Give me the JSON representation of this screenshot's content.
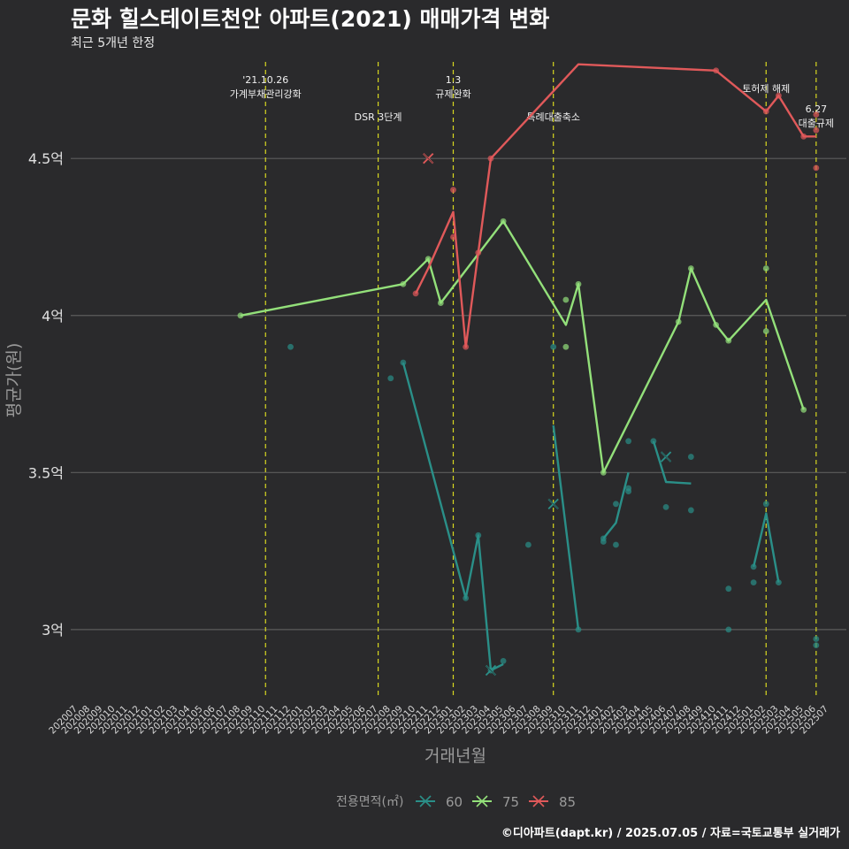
{
  "title": "문화 힐스테이트천안 아파트(2021) 매매가격 변화",
  "subtitle": "최근 5개년 한정",
  "caption": "©디아파트(dapt.kr) / 2025.07.05 / 자료=국토교통부 실거래가",
  "colors": {
    "background": "#2a2a2c",
    "grid": "#5c5c5c",
    "event_line": "#d8d820",
    "series_60": "#2a8f88",
    "series_75": "#93e07a",
    "series_85": "#e0595a"
  },
  "chart_data": {
    "type": "line",
    "xlabel": "거래년월",
    "ylabel": "평균가(원)",
    "ylim": [
      2.78,
      4.83
    ],
    "y_ticks": [
      {
        "value": 3.0,
        "label": "3억"
      },
      {
        "value": 3.5,
        "label": "3.5억"
      },
      {
        "value": 4.0,
        "label": "4억"
      },
      {
        "value": 4.5,
        "label": "4.5억"
      }
    ],
    "x_categories": [
      "202007",
      "202008",
      "202009",
      "202010",
      "202011",
      "202012",
      "202101",
      "202102",
      "202103",
      "202104",
      "202105",
      "202106",
      "202107",
      "202108",
      "202109",
      "202110",
      "202111",
      "202112",
      "202201",
      "202202",
      "202203",
      "202204",
      "202205",
      "202206",
      "202207",
      "202208",
      "202209",
      "202210",
      "202211",
      "202212",
      "202301",
      "202302",
      "202303",
      "202304",
      "202305",
      "202306",
      "202307",
      "202308",
      "202309",
      "202310",
      "202311",
      "202312",
      "202401",
      "202402",
      "202403",
      "202404",
      "202405",
      "202406",
      "202407",
      "202408",
      "202409",
      "202410",
      "202411",
      "202412",
      "202501",
      "202502",
      "202503",
      "202504",
      "202505",
      "202506",
      "202507"
    ],
    "legend_title": "전용면적(㎡)",
    "legend_position": "bottom",
    "events": [
      {
        "x": "202110",
        "lines": [
          "'21.10.26",
          "가계부채관리강화"
        ]
      },
      {
        "x": "202207",
        "lines": [
          "DSR 3단계"
        ]
      },
      {
        "x": "202301",
        "lines": [
          "1.3",
          "규제완화"
        ]
      },
      {
        "x": "202309",
        "lines": [
          "특례대출축소"
        ]
      },
      {
        "x": "202502",
        "lines": [
          "토허제 해제"
        ]
      },
      {
        "x": "202506",
        "lines": [
          "6.27",
          "대출규제"
        ]
      }
    ],
    "series": [
      {
        "name": "60",
        "color_key": "series_60",
        "line": [
          {
            "x": "202209",
            "y": 3.85
          },
          {
            "x": "202302",
            "y": 3.1
          },
          {
            "x": "202303",
            "y": 3.3
          },
          {
            "x": "202304",
            "y": 2.87
          },
          {
            "x": "202305",
            "y": 2.89
          },
          null,
          {
            "x": "202309",
            "y": 3.65
          },
          {
            "x": "202311",
            "y": 3.0
          },
          null,
          {
            "x": "202401",
            "y": 3.29
          },
          {
            "x": "202402",
            "y": 3.34
          },
          {
            "x": "202403",
            "y": 3.5
          },
          null,
          {
            "x": "202405",
            "y": 3.6
          },
          {
            "x": "202406",
            "y": 3.47
          },
          {
            "x": "202408",
            "y": 3.465
          },
          null,
          {
            "x": "202501",
            "y": 3.2
          },
          {
            "x": "202502",
            "y": 3.37
          },
          {
            "x": "202503",
            "y": 3.15
          }
        ],
        "points": [
          {
            "x": "202208",
            "y": 3.8
          },
          {
            "x": "202112",
            "y": 3.9
          },
          {
            "x": "202209",
            "y": 3.85
          },
          {
            "x": "202302",
            "y": 3.1
          },
          {
            "x": "202303",
            "y": 3.3
          },
          {
            "x": "202304",
            "y": 2.87
          },
          {
            "x": "202305",
            "y": 2.9
          },
          {
            "x": "202307",
            "y": 3.27
          },
          {
            "x": "202309",
            "y": 3.9
          },
          {
            "x": "202311",
            "y": 3.0
          },
          {
            "x": "202401",
            "y": 3.28
          },
          {
            "x": "202401",
            "y": 3.29
          },
          {
            "x": "202402",
            "y": 3.27
          },
          {
            "x": "202402",
            "y": 3.4
          },
          {
            "x": "202403",
            "y": 3.44
          },
          {
            "x": "202403",
            "y": 3.45
          },
          {
            "x": "202403",
            "y": 3.6
          },
          {
            "x": "202405",
            "y": 3.6
          },
          {
            "x": "202406",
            "y": 3.39
          },
          {
            "x": "202408",
            "y": 3.38
          },
          {
            "x": "202408",
            "y": 3.55
          },
          {
            "x": "202411",
            "y": 3.13
          },
          {
            "x": "202411",
            "y": 3.0
          },
          {
            "x": "202501",
            "y": 3.15
          },
          {
            "x": "202501",
            "y": 3.2
          },
          {
            "x": "202502",
            "y": 3.4
          },
          {
            "x": "202503",
            "y": 3.15
          },
          {
            "x": "202506",
            "y": 2.95
          },
          {
            "x": "202506",
            "y": 2.97
          }
        ],
        "x_marks": [
          {
            "x": "202304",
            "y": 2.87
          },
          {
            "x": "202309",
            "y": 3.4
          },
          {
            "x": "202406",
            "y": 3.55
          }
        ]
      },
      {
        "name": "75",
        "color_key": "series_75",
        "line": [
          {
            "x": "202108",
            "y": 4.0
          },
          {
            "x": "202209",
            "y": 4.1
          },
          {
            "x": "202211",
            "y": 4.18
          },
          {
            "x": "202212",
            "y": 4.04
          },
          {
            "x": "202305",
            "y": 4.3
          },
          {
            "x": "202310",
            "y": 3.97
          },
          {
            "x": "202311",
            "y": 4.1
          },
          {
            "x": "202401",
            "y": 3.5
          },
          {
            "x": "202407",
            "y": 3.98
          },
          {
            "x": "202408",
            "y": 4.15
          },
          {
            "x": "202410",
            "y": 3.97
          },
          {
            "x": "202411",
            "y": 3.92
          },
          {
            "x": "202502",
            "y": 4.05
          },
          {
            "x": "202505",
            "y": 3.7
          }
        ],
        "points": [
          {
            "x": "202108",
            "y": 4.0
          },
          {
            "x": "202209",
            "y": 4.1
          },
          {
            "x": "202211",
            "y": 4.18
          },
          {
            "x": "202212",
            "y": 4.04
          },
          {
            "x": "202305",
            "y": 4.3
          },
          {
            "x": "202310",
            "y": 3.9
          },
          {
            "x": "202310",
            "y": 4.05
          },
          {
            "x": "202311",
            "y": 4.1
          },
          {
            "x": "202401",
            "y": 3.5
          },
          {
            "x": "202407",
            "y": 3.98
          },
          {
            "x": "202408",
            "y": 4.15
          },
          {
            "x": "202410",
            "y": 3.97
          },
          {
            "x": "202411",
            "y": 3.92
          },
          {
            "x": "202502",
            "y": 4.15
          },
          {
            "x": "202502",
            "y": 3.95
          },
          {
            "x": "202505",
            "y": 3.7
          }
        ],
        "x_marks": []
      },
      {
        "name": "85",
        "color_key": "series_85",
        "line": [
          {
            "x": "202210",
            "y": 4.07
          },
          {
            "x": "202211",
            "y": 4.15
          },
          {
            "x": "202301",
            "y": 4.33
          },
          {
            "x": "202302",
            "y": 3.9
          },
          {
            "x": "202303",
            "y": 4.2
          },
          {
            "x": "202304",
            "y": 4.5
          },
          {
            "x": "202311",
            "y": 4.8
          },
          {
            "x": "202410",
            "y": 4.78
          },
          {
            "x": "202502",
            "y": 4.65
          },
          {
            "x": "202503",
            "y": 4.7
          },
          {
            "x": "202505",
            "y": 4.57
          },
          {
            "x": "202506",
            "y": 4.57
          }
        ],
        "points": [
          {
            "x": "202210",
            "y": 4.07
          },
          {
            "x": "202301",
            "y": 4.4
          },
          {
            "x": "202301",
            "y": 4.25
          },
          {
            "x": "202302",
            "y": 3.9
          },
          {
            "x": "202303",
            "y": 4.2
          },
          {
            "x": "202304",
            "y": 4.5
          },
          {
            "x": "202410",
            "y": 4.78
          },
          {
            "x": "202502",
            "y": 4.65
          },
          {
            "x": "202503",
            "y": 4.7
          },
          {
            "x": "202505",
            "y": 4.57
          },
          {
            "x": "202506",
            "y": 4.64
          },
          {
            "x": "202506",
            "y": 4.59
          },
          {
            "x": "202506",
            "y": 4.47
          }
        ],
        "x_marks": [
          {
            "x": "202211",
            "y": 4.5
          }
        ]
      }
    ]
  }
}
